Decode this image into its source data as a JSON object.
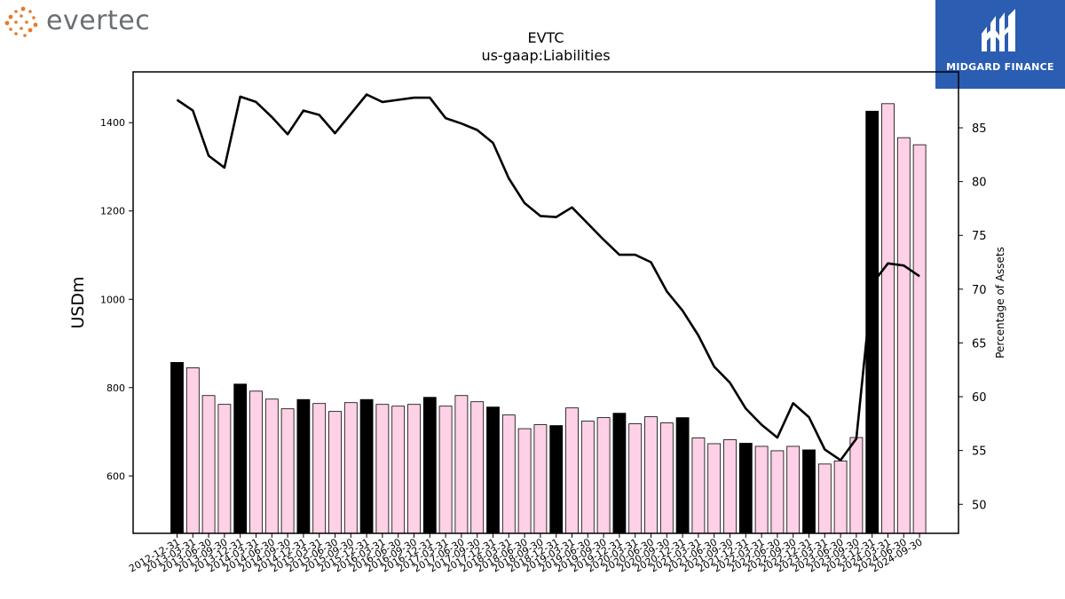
{
  "branding": {
    "left_logo": "evertec",
    "right_logo": "MIDGARD FINANCE",
    "left_color": "#e8782a",
    "right_bg": "#2b5db2"
  },
  "chart_data": {
    "type": "bar",
    "title": "EVTC",
    "subtitle": "us-gaap:Liabilities",
    "ylabel": "USDm",
    "y2label": "Percentage of Assets",
    "ylim": [
      470,
      1515
    ],
    "y2lim": [
      47.3,
      90.2
    ],
    "yticks": [
      600,
      800,
      1000,
      1200,
      1400
    ],
    "y2ticks": [
      50,
      55,
      60,
      65,
      70,
      75,
      80,
      85
    ],
    "grid": false,
    "categories": [
      "2012-12-31",
      "2013-03-31",
      "2013-06-30",
      "2013-09-30",
      "2013-12-31",
      "2014-03-31",
      "2014-06-30",
      "2014-09-30",
      "2014-12-31",
      "2015-03-31",
      "2015-06-30",
      "2015-09-30",
      "2015-12-31",
      "2016-03-31",
      "2016-06-30",
      "2016-09-30",
      "2016-12-31",
      "2017-03-31",
      "2017-06-30",
      "2017-09-30",
      "2017-12-31",
      "2018-03-31",
      "2018-06-30",
      "2018-09-30",
      "2018-12-31",
      "2019-03-31",
      "2019-06-30",
      "2019-09-30",
      "2019-12-31",
      "2020-03-31",
      "2020-06-30",
      "2020-09-30",
      "2020-12-31",
      "2021-03-31",
      "2021-06-30",
      "2021-09-30",
      "2021-12-31",
      "2022-03-31",
      "2022-06-30",
      "2022-09-30",
      "2022-12-31",
      "2023-03-31",
      "2023-06-30",
      "2023-09-30",
      "2023-12-31",
      "2024-03-31",
      "2024-06-30",
      "2024-09-30"
    ],
    "series": [
      {
        "values": [
          857,
          845,
          782,
          762,
          808,
          792,
          774,
          752,
          773,
          764,
          746,
          766,
          773,
          762,
          758,
          762,
          778,
          758,
          782,
          768,
          756,
          738,
          707,
          716,
          714,
          754,
          724,
          732,
          742,
          718,
          734,
          720,
          732,
          686,
          673,
          682,
          674,
          667,
          657,
          667,
          659,
          627,
          634,
          687,
          1426,
          1443,
          1366,
          1350
        ],
        "year_end_color": "#000000",
        "quarter_color": "#ffd1e6",
        "edge_color": "#000000"
      },
      {
        "name": "Percentage of Assets",
        "values": [
          87.6,
          86.6,
          82.4,
          81.3,
          87.9,
          87.4,
          86.0,
          84.4,
          86.6,
          86.2,
          84.5,
          86.3,
          88.1,
          87.4,
          87.6,
          87.8,
          87.8,
          85.9,
          85.4,
          84.8,
          83.6,
          80.3,
          78.0,
          76.8,
          76.7,
          77.6,
          76.1,
          74.6,
          73.2,
          73.2,
          72.5,
          69.8,
          68.0,
          65.7,
          62.8,
          61.3,
          58.9,
          57.4,
          56.2,
          59.4,
          58.1,
          55.1,
          54.1,
          56.1,
          70.5,
          72.4,
          72.2,
          71.2
        ],
        "color": "#000000"
      }
    ]
  }
}
